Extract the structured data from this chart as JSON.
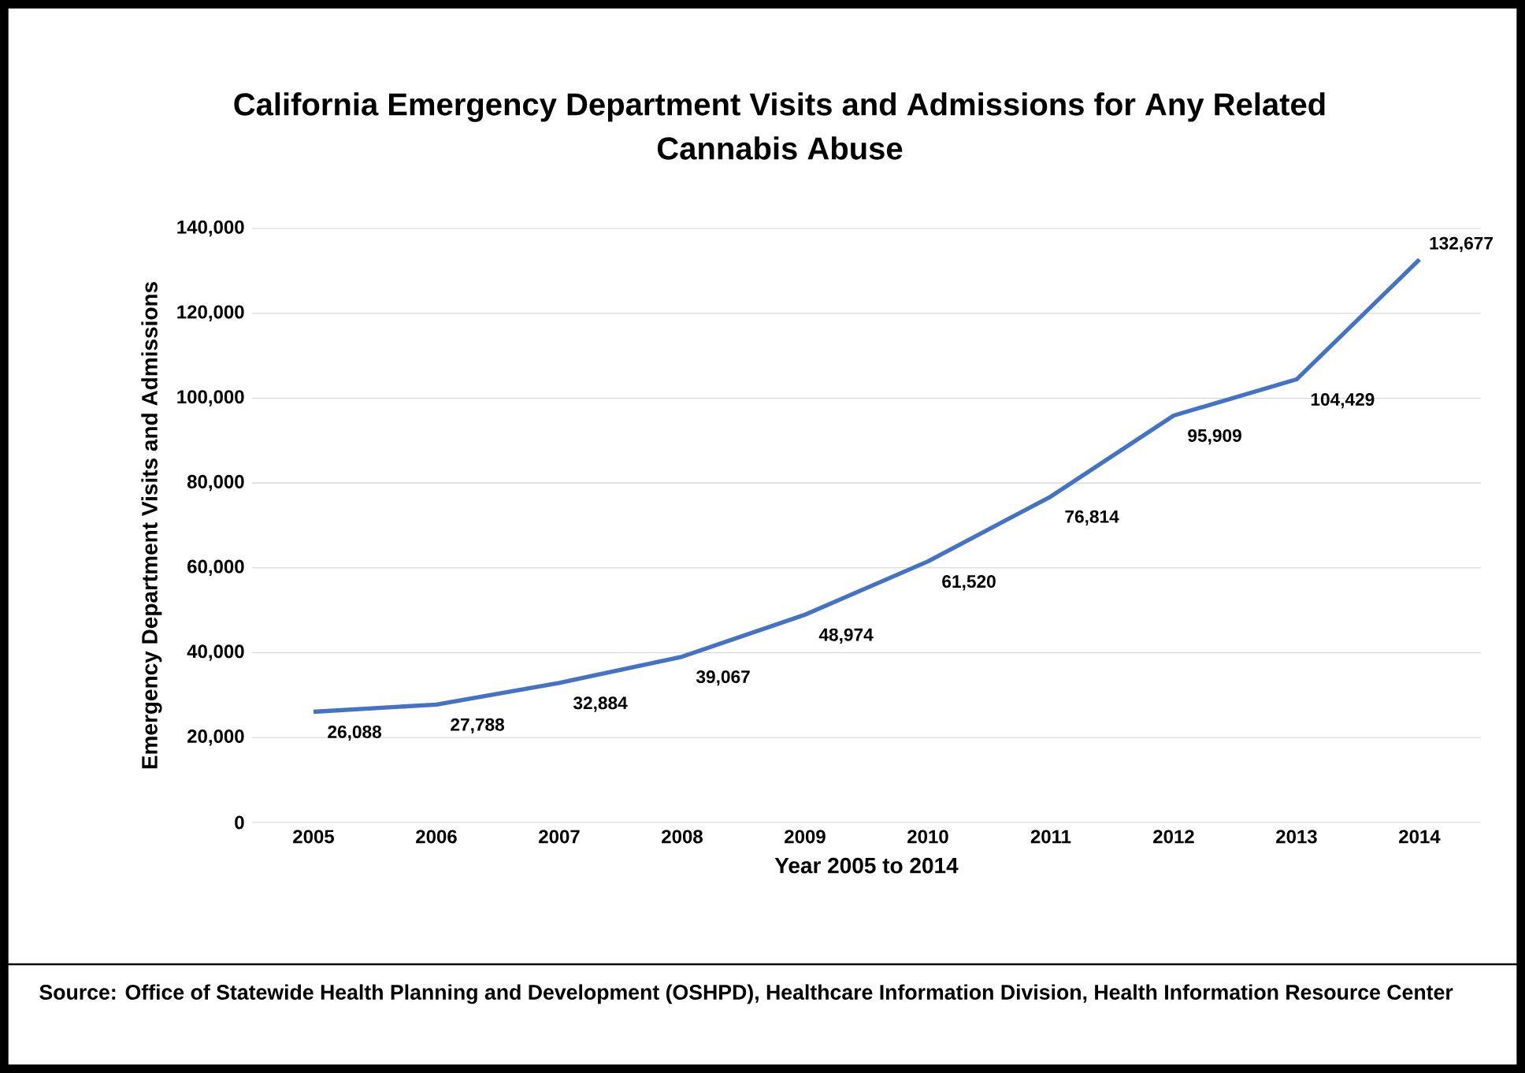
{
  "chart_data": {
    "type": "line",
    "title": "California Emergency Department Visits and Admissions for Any Related Cannabis Abuse",
    "xlabel": "Year 2005 to 2014",
    "ylabel": "Emergency Department Visits and Admissions",
    "categories": [
      "2005",
      "2006",
      "2007",
      "2008",
      "2009",
      "2010",
      "2011",
      "2012",
      "2013",
      "2014"
    ],
    "values": [
      26088,
      27788,
      32884,
      39067,
      48974,
      61520,
      76814,
      95909,
      104429,
      132677
    ],
    "value_labels": [
      "26,088",
      "27,788",
      "32,884",
      "39,067",
      "48,974",
      "61,520",
      "76,814",
      "95,909",
      "104,429",
      "132,677"
    ],
    "color": "#4472c4",
    "ylim": [
      0,
      140000
    ],
    "yticks": [
      {
        "value": 0,
        "label": "0"
      },
      {
        "value": 20000,
        "label": "20,000"
      },
      {
        "value": 40000,
        "label": "40,000"
      },
      {
        "value": 60000,
        "label": "60,000"
      },
      {
        "value": 80000,
        "label": "80,000"
      },
      {
        "value": 100000,
        "label": "100,000"
      },
      {
        "value": 120000,
        "label": "120,000"
      },
      {
        "value": 140000,
        "label": "140,000"
      }
    ],
    "grid": "y",
    "marker": "none",
    "line_style": "solid",
    "annotations": [
      "Source: Office of Statewide Health Planning and Development (OSHPD), Healthcare Information Division, Health Information Resource Center"
    ]
  }
}
